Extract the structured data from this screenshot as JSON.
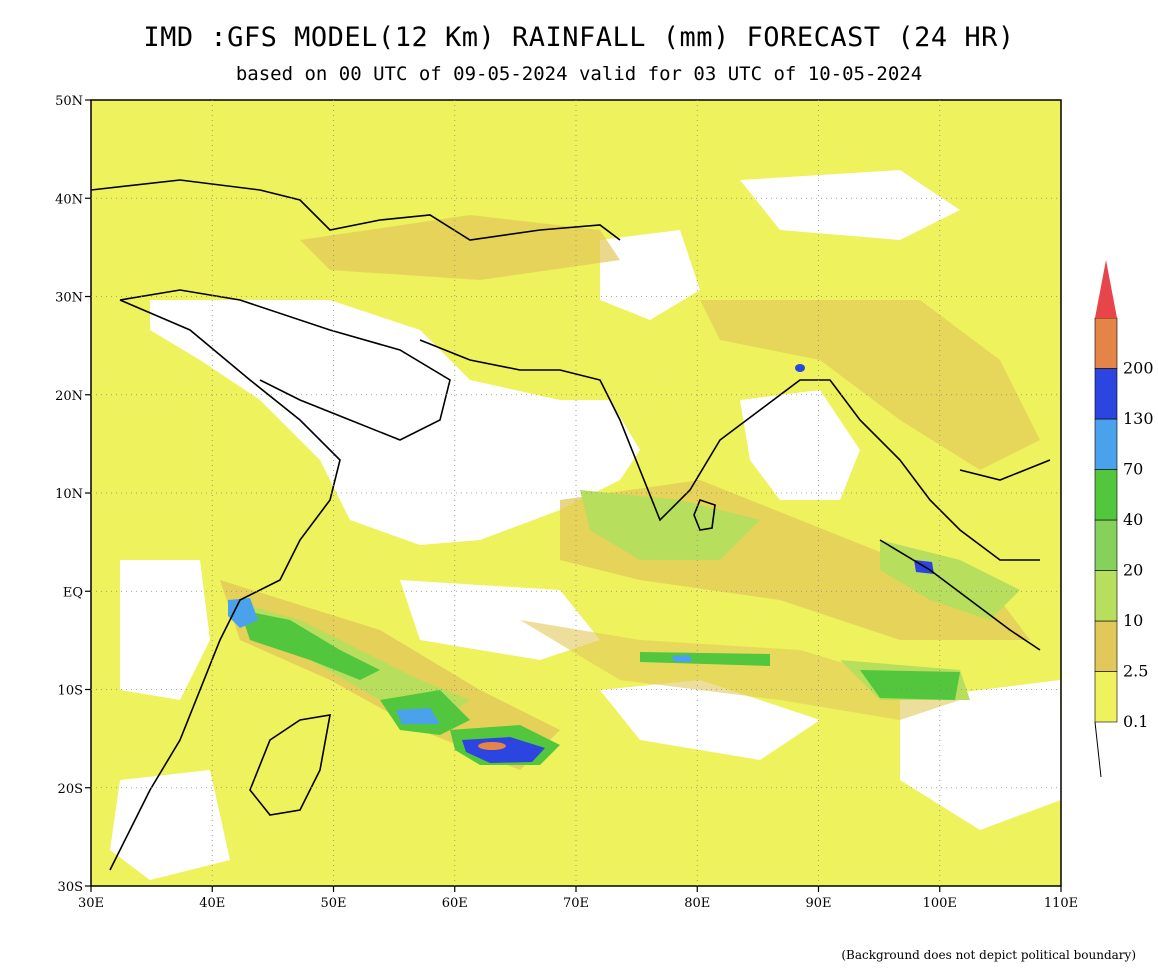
{
  "header": {
    "title": "IMD :GFS MODEL(12 Km) RAINFALL (mm) FORECAST (24 HR)",
    "subtitle": "based on 00 UTC of 09-05-2024 valid for 03 UTC of 10-05-2024"
  },
  "map": {
    "lon_range": [
      30,
      110
    ],
    "lat_range": [
      -30,
      50
    ],
    "lat_labels": [
      "50N",
      "40N",
      "30N",
      "20N",
      "10N",
      "EQ",
      "10S",
      "20S",
      "30S"
    ],
    "lon_labels": [
      "30E",
      "40E",
      "50E",
      "60E",
      "70E",
      "80E",
      "90E",
      "100E",
      "110E"
    ]
  },
  "legend": {
    "labels": [
      "0.1",
      "2.5",
      "10",
      "20",
      "40",
      "70",
      "130",
      "200"
    ],
    "colors": [
      "#eef25c",
      "#e2c85a",
      "#b7de5c",
      "#86d05c",
      "#52c63c",
      "#4ba2ec",
      "#2c44e0",
      "#e48446",
      "#e8454b"
    ]
  },
  "footnote": "(Background does not depict political boundary)"
}
